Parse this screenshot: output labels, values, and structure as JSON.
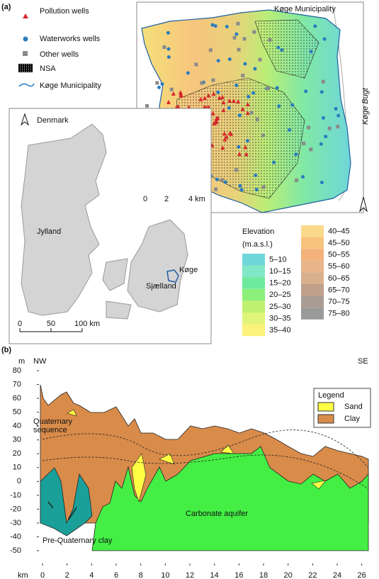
{
  "panel_a": {
    "label": "(a)",
    "legend": [
      "Pollution wells",
      "Waterworks wells",
      "Other wells",
      "NSA",
      "Køge Municipality"
    ],
    "map_title": "Køge Municipality",
    "sea_label": "Køge Bugt",
    "scale": [
      "0",
      "2",
      "4 km"
    ],
    "inset": {
      "title": "Denmark",
      "labels": [
        "Jylland",
        "Sjælland",
        "Køge"
      ],
      "scale": [
        "0",
        "50",
        "100 km"
      ]
    },
    "elevation": {
      "title": "Elevation",
      "unit": "(m.a.s.l.)",
      "classes": [
        {
          "label": "5–10",
          "color": "#6fd6d9"
        },
        {
          "label": "10–15",
          "color": "#80e8c6"
        },
        {
          "label": "15–20",
          "color": "#6eea9c"
        },
        {
          "label": "20–25",
          "color": "#8cf07a"
        },
        {
          "label": "25–30",
          "color": "#bff070"
        },
        {
          "label": "30–35",
          "color": "#e0f57a"
        },
        {
          "label": "35–40",
          "color": "#fbf27a"
        },
        {
          "label": "40–45",
          "color": "#fbd88a"
        },
        {
          "label": "45–50",
          "color": "#f6c37c"
        },
        {
          "label": "50–55",
          "color": "#f2b27a"
        },
        {
          "label": "55–60",
          "color": "#e8b58a"
        },
        {
          "label": "60–65",
          "color": "#d9b08e"
        },
        {
          "label": "65–70",
          "color": "#bfa08a"
        },
        {
          "label": "70–75",
          "color": "#a89c94"
        },
        {
          "label": "75–80",
          "color": "#9a9a9a"
        }
      ]
    }
  },
  "chart_data": {
    "type": "area",
    "label": "(b)",
    "y_unit": "m",
    "x_unit": "km",
    "left_label": "NW",
    "right_label": "SE",
    "xlim": [
      0,
      27
    ],
    "xticks": [
      0,
      2,
      4,
      6,
      8,
      10,
      12,
      14,
      16,
      18,
      20,
      22,
      24,
      26
    ],
    "ylim": [
      -50,
      80
    ],
    "yticks": [
      -50,
      -40,
      -30,
      -20,
      -10,
      0,
      10,
      20,
      30,
      40,
      50,
      60,
      70,
      80
    ],
    "legend": {
      "title": "Legend",
      "items": [
        {
          "name": "Sand",
          "color": "#ffff44"
        },
        {
          "name": "Clay",
          "color": "#d98b4a"
        }
      ]
    },
    "annotations": [
      "Quaternary sequence",
      "Carbonate aquifer",
      "Pre-Quaternary clay"
    ]
  }
}
